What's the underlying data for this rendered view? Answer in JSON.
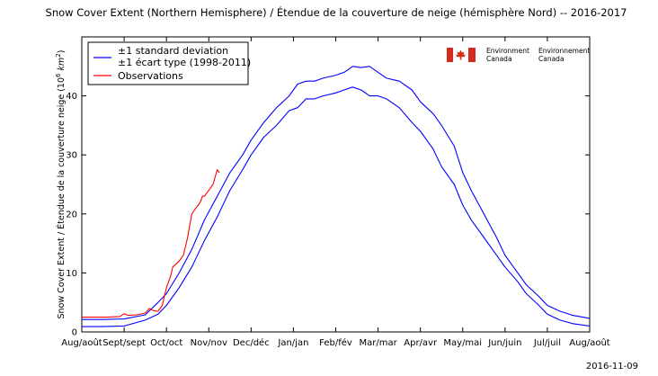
{
  "chart_data": {
    "type": "line",
    "title": "Snow Cover Extent (Northern Hemisphere) / Étendue de la couverture de neige (hémisphère Nord) -- 2016-2017",
    "ylabel_main": "Snow Cover Extent / Étendue de la couverture neige (10",
    "ylabel_exp": "6",
    "ylabel_unit": " km",
    "ylabel_unit_exp": "2",
    "ylabel_close": ")",
    "xlabel": "",
    "x_tick_labels": [
      "Aug/août",
      "Sept/sept",
      "Oct/oct",
      "Nov/nov",
      "Dec/déc",
      "Jan/jan",
      "Feb/fév",
      "Mar/mar",
      "Apr/avr",
      "May/mai",
      "Jun/juin",
      "Jul/juil",
      "Aug/août"
    ],
    "xlim": [
      0,
      12
    ],
    "ylim": [
      0,
      50
    ],
    "y_ticks": [
      0,
      10,
      20,
      30,
      40
    ],
    "grid": false,
    "legend_position": "top-left",
    "legend": {
      "std_line1": "±1 standard deviation",
      "std_line2": "±1 écart type (1998-2011)",
      "obs": "Observations"
    },
    "series": [
      {
        "name": "±1 standard deviation (upper)",
        "color": "#0000ff",
        "points": [
          [
            0,
            2.1
          ],
          [
            0.5,
            2.1
          ],
          [
            1,
            2.2
          ],
          [
            1.5,
            2.9
          ],
          [
            1.8,
            5
          ],
          [
            2,
            6.5
          ],
          [
            2.3,
            10
          ],
          [
            2.6,
            14
          ],
          [
            2.9,
            19
          ],
          [
            3.2,
            23
          ],
          [
            3.5,
            27
          ],
          [
            3.8,
            30
          ],
          [
            4,
            32.5
          ],
          [
            4.3,
            35.5
          ],
          [
            4.6,
            38
          ],
          [
            4.9,
            40
          ],
          [
            5.1,
            42
          ],
          [
            5.3,
            42.5
          ],
          [
            5.5,
            42.5
          ],
          [
            5.7,
            43
          ],
          [
            6,
            43.5
          ],
          [
            6.2,
            44
          ],
          [
            6.4,
            45
          ],
          [
            6.6,
            44.8
          ],
          [
            6.8,
            45
          ],
          [
            7,
            44
          ],
          [
            7.2,
            43
          ],
          [
            7.5,
            42.5
          ],
          [
            7.8,
            41
          ],
          [
            8,
            39
          ],
          [
            8.3,
            37
          ],
          [
            8.5,
            35
          ],
          [
            8.8,
            31.5
          ],
          [
            9,
            27
          ],
          [
            9.2,
            24
          ],
          [
            9.5,
            20
          ],
          [
            9.8,
            16
          ],
          [
            10,
            13
          ],
          [
            10.3,
            10
          ],
          [
            10.5,
            8
          ],
          [
            10.8,
            6
          ],
          [
            11,
            4.5
          ],
          [
            11.3,
            3.5
          ],
          [
            11.6,
            2.8
          ],
          [
            12,
            2.3
          ]
        ]
      },
      {
        "name": "±1 standard deviation (lower)",
        "color": "#0000ff",
        "points": [
          [
            0,
            0.9
          ],
          [
            0.5,
            0.9
          ],
          [
            1,
            1
          ],
          [
            1.5,
            2
          ],
          [
            1.8,
            3
          ],
          [
            2,
            4.5
          ],
          [
            2.3,
            7.5
          ],
          [
            2.6,
            11
          ],
          [
            2.9,
            15.5
          ],
          [
            3.2,
            19.5
          ],
          [
            3.5,
            24
          ],
          [
            3.8,
            27.5
          ],
          [
            4,
            30
          ],
          [
            4.3,
            33
          ],
          [
            4.6,
            35
          ],
          [
            4.9,
            37.5
          ],
          [
            5.1,
            38
          ],
          [
            5.3,
            39.5
          ],
          [
            5.5,
            39.5
          ],
          [
            5.7,
            40
          ],
          [
            6,
            40.5
          ],
          [
            6.2,
            41
          ],
          [
            6.4,
            41.5
          ],
          [
            6.6,
            41
          ],
          [
            6.8,
            40
          ],
          [
            7,
            40
          ],
          [
            7.2,
            39.5
          ],
          [
            7.5,
            38
          ],
          [
            7.8,
            35.5
          ],
          [
            8,
            34
          ],
          [
            8.3,
            31
          ],
          [
            8.5,
            28
          ],
          [
            8.8,
            25
          ],
          [
            9,
            21.5
          ],
          [
            9.2,
            19
          ],
          [
            9.5,
            16
          ],
          [
            9.8,
            13
          ],
          [
            10,
            11
          ],
          [
            10.3,
            8.5
          ],
          [
            10.5,
            6.5
          ],
          [
            10.8,
            4.5
          ],
          [
            11,
            3
          ],
          [
            11.3,
            2
          ],
          [
            11.6,
            1.4
          ],
          [
            12,
            1
          ]
        ]
      },
      {
        "name": "Observations",
        "color": "#ff0000",
        "points": [
          [
            0,
            2.5
          ],
          [
            0.3,
            2.5
          ],
          [
            0.6,
            2.5
          ],
          [
            0.9,
            2.6
          ],
          [
            1,
            3.1
          ],
          [
            1.1,
            2.8
          ],
          [
            1.3,
            2.9
          ],
          [
            1.5,
            3.2
          ],
          [
            1.6,
            4
          ],
          [
            1.7,
            3.6
          ],
          [
            1.8,
            3.5
          ],
          [
            1.9,
            4.5
          ],
          [
            2,
            7.5
          ],
          [
            2.1,
            9.5
          ],
          [
            2.15,
            11
          ],
          [
            2.3,
            12
          ],
          [
            2.4,
            13
          ],
          [
            2.5,
            16
          ],
          [
            2.6,
            20
          ],
          [
            2.7,
            21
          ],
          [
            2.8,
            22
          ],
          [
            2.85,
            23
          ],
          [
            2.9,
            23
          ],
          [
            3,
            24
          ],
          [
            3.1,
            25
          ],
          [
            3.2,
            27.5
          ],
          [
            3.25,
            27
          ]
        ]
      }
    ]
  },
  "brand": {
    "flag_color": "#d52b1e",
    "env_en_1": "Environment",
    "env_en_2": "Canada",
    "env_fr_1": "Environnement",
    "env_fr_2": "Canada"
  },
  "timestamp": "2016-11-09"
}
